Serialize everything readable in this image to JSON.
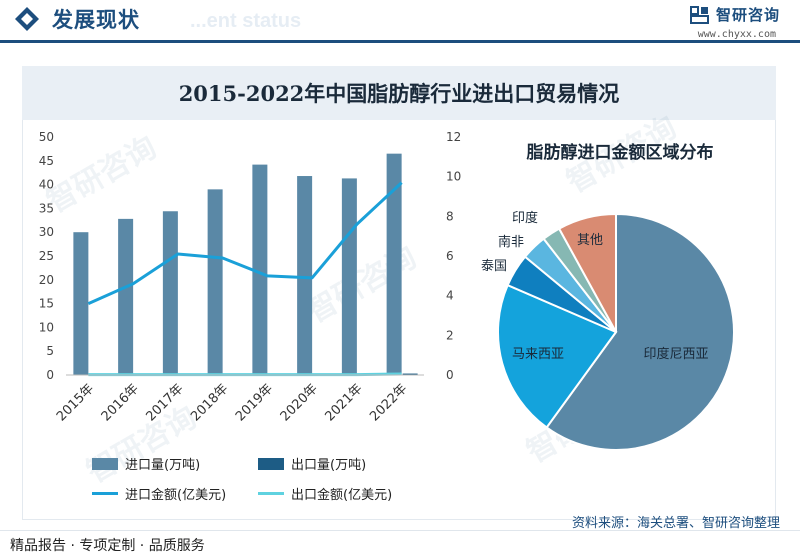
{
  "header": {
    "title": "发展现状",
    "ghost_text": "...ent status",
    "logo_text": "智研咨询",
    "logo_url": "www.chyxx.com"
  },
  "main_title": "2015-2022年中国脂肪醇行业进出口贸易情况",
  "pie_title": "脂肪醇进口金额区域分布",
  "source": "资料来源：海关总署、智研咨询整理",
  "footer": "精品报告 · 专项定制 · 品质服务",
  "watermark": "智研咨询",
  "colors": {
    "import_volume": "#5a88a6",
    "export_volume": "#1d5c85",
    "import_amount": "#1aa0d8",
    "export_amount": "#5fd2e0",
    "brand": "#1d4e7e"
  },
  "legend": {
    "import_volume": "进口量(万吨)",
    "export_volume": "出口量(万吨)",
    "import_amount": "进口金额(亿美元)",
    "export_amount": "出口金额(亿美元)"
  },
  "chart_data": [
    {
      "type": "bar",
      "categories": [
        "2015年",
        "2016年",
        "2017年",
        "2018年",
        "2019年",
        "2020年",
        "2021年",
        "2022年"
      ],
      "series": [
        {
          "name": "进口量(万吨)",
          "type": "bar",
          "axis": "left",
          "values": [
            30,
            32.8,
            34.4,
            39,
            44.2,
            41.8,
            41.3,
            46.5
          ]
        },
        {
          "name": "出口量(万吨)",
          "type": "bar",
          "axis": "left",
          "values": [
            0.1,
            0.1,
            0.1,
            0.1,
            0.1,
            0.1,
            0.1,
            0.3
          ]
        },
        {
          "name": "进口金额(亿美元)",
          "type": "line",
          "axis": "right",
          "values": [
            3.6,
            4.6,
            6.1,
            5.9,
            5.0,
            4.9,
            7.6,
            9.7
          ]
        },
        {
          "name": "出口金额(亿美元)",
          "type": "line",
          "axis": "right",
          "values": [
            0.02,
            0.02,
            0.02,
            0.02,
            0.02,
            0.02,
            0.02,
            0.05
          ]
        }
      ],
      "y_left": {
        "min": 0,
        "max": 50,
        "ticks": [
          0,
          5,
          10,
          15,
          20,
          25,
          30,
          35,
          40,
          45,
          50
        ]
      },
      "y_right": {
        "min": 0,
        "max": 12,
        "ticks": [
          0,
          2,
          4,
          6,
          8,
          10,
          12
        ]
      },
      "legend_position": "bottom"
    },
    {
      "type": "pie",
      "title": "脂肪醇进口金额区域分布",
      "slices": [
        {
          "label": "印度尼西亚",
          "value": 60,
          "color": "#5a88a6"
        },
        {
          "label": "马来西亚",
          "value": 21.5,
          "color": "#14a3dc"
        },
        {
          "label": "泰国",
          "value": 4.5,
          "color": "#0f7fbf"
        },
        {
          "label": "南非",
          "value": 3.5,
          "color": "#5ab6e0"
        },
        {
          "label": "印度",
          "value": 2.5,
          "color": "#86b8b3"
        },
        {
          "label": "其他",
          "value": 8,
          "color": "#d98b72"
        }
      ]
    }
  ]
}
